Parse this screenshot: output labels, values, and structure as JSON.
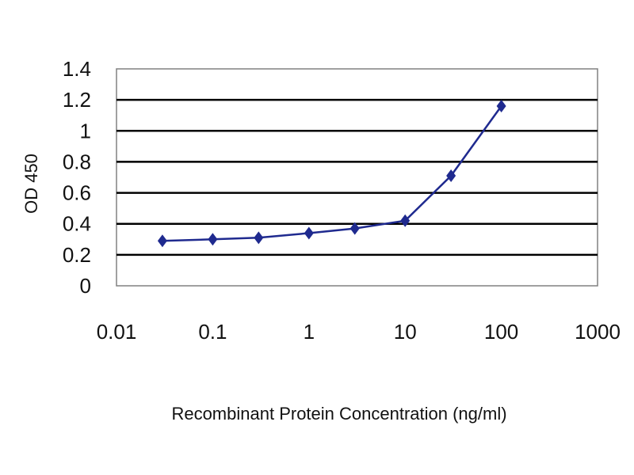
{
  "chart_data": {
    "type": "line",
    "title": "",
    "xlabel": "Recombinant Protein Concentration (ng/ml)",
    "ylabel": "OD 450",
    "x_scale": "log",
    "xlim": [
      0.01,
      1000
    ],
    "ylim": [
      0,
      1.4
    ],
    "x_ticks": [
      0.01,
      0.1,
      1,
      10,
      100,
      1000
    ],
    "x_tick_labels": [
      "0.01",
      "0.1",
      "1",
      "10",
      "100",
      "1000"
    ],
    "y_ticks": [
      0,
      0.2,
      0.4,
      0.6,
      0.8,
      1,
      1.2,
      1.4
    ],
    "y_tick_labels": [
      "0",
      "0.2",
      "0.4",
      "0.6",
      "0.8",
      "1",
      "1.2",
      "1.4"
    ],
    "grid": "horizontal",
    "legend": "none",
    "series": [
      {
        "color": "#1f2a8f",
        "marker": "diamond",
        "x": [
          0.03,
          0.1,
          0.3,
          1,
          3,
          10,
          30,
          100
        ],
        "y": [
          0.29,
          0.3,
          0.31,
          0.34,
          0.37,
          0.42,
          0.71,
          1.16
        ]
      }
    ],
    "colors": {
      "plot_background": "#ffffff",
      "gridline": "#000000",
      "frame": "#808080"
    }
  }
}
